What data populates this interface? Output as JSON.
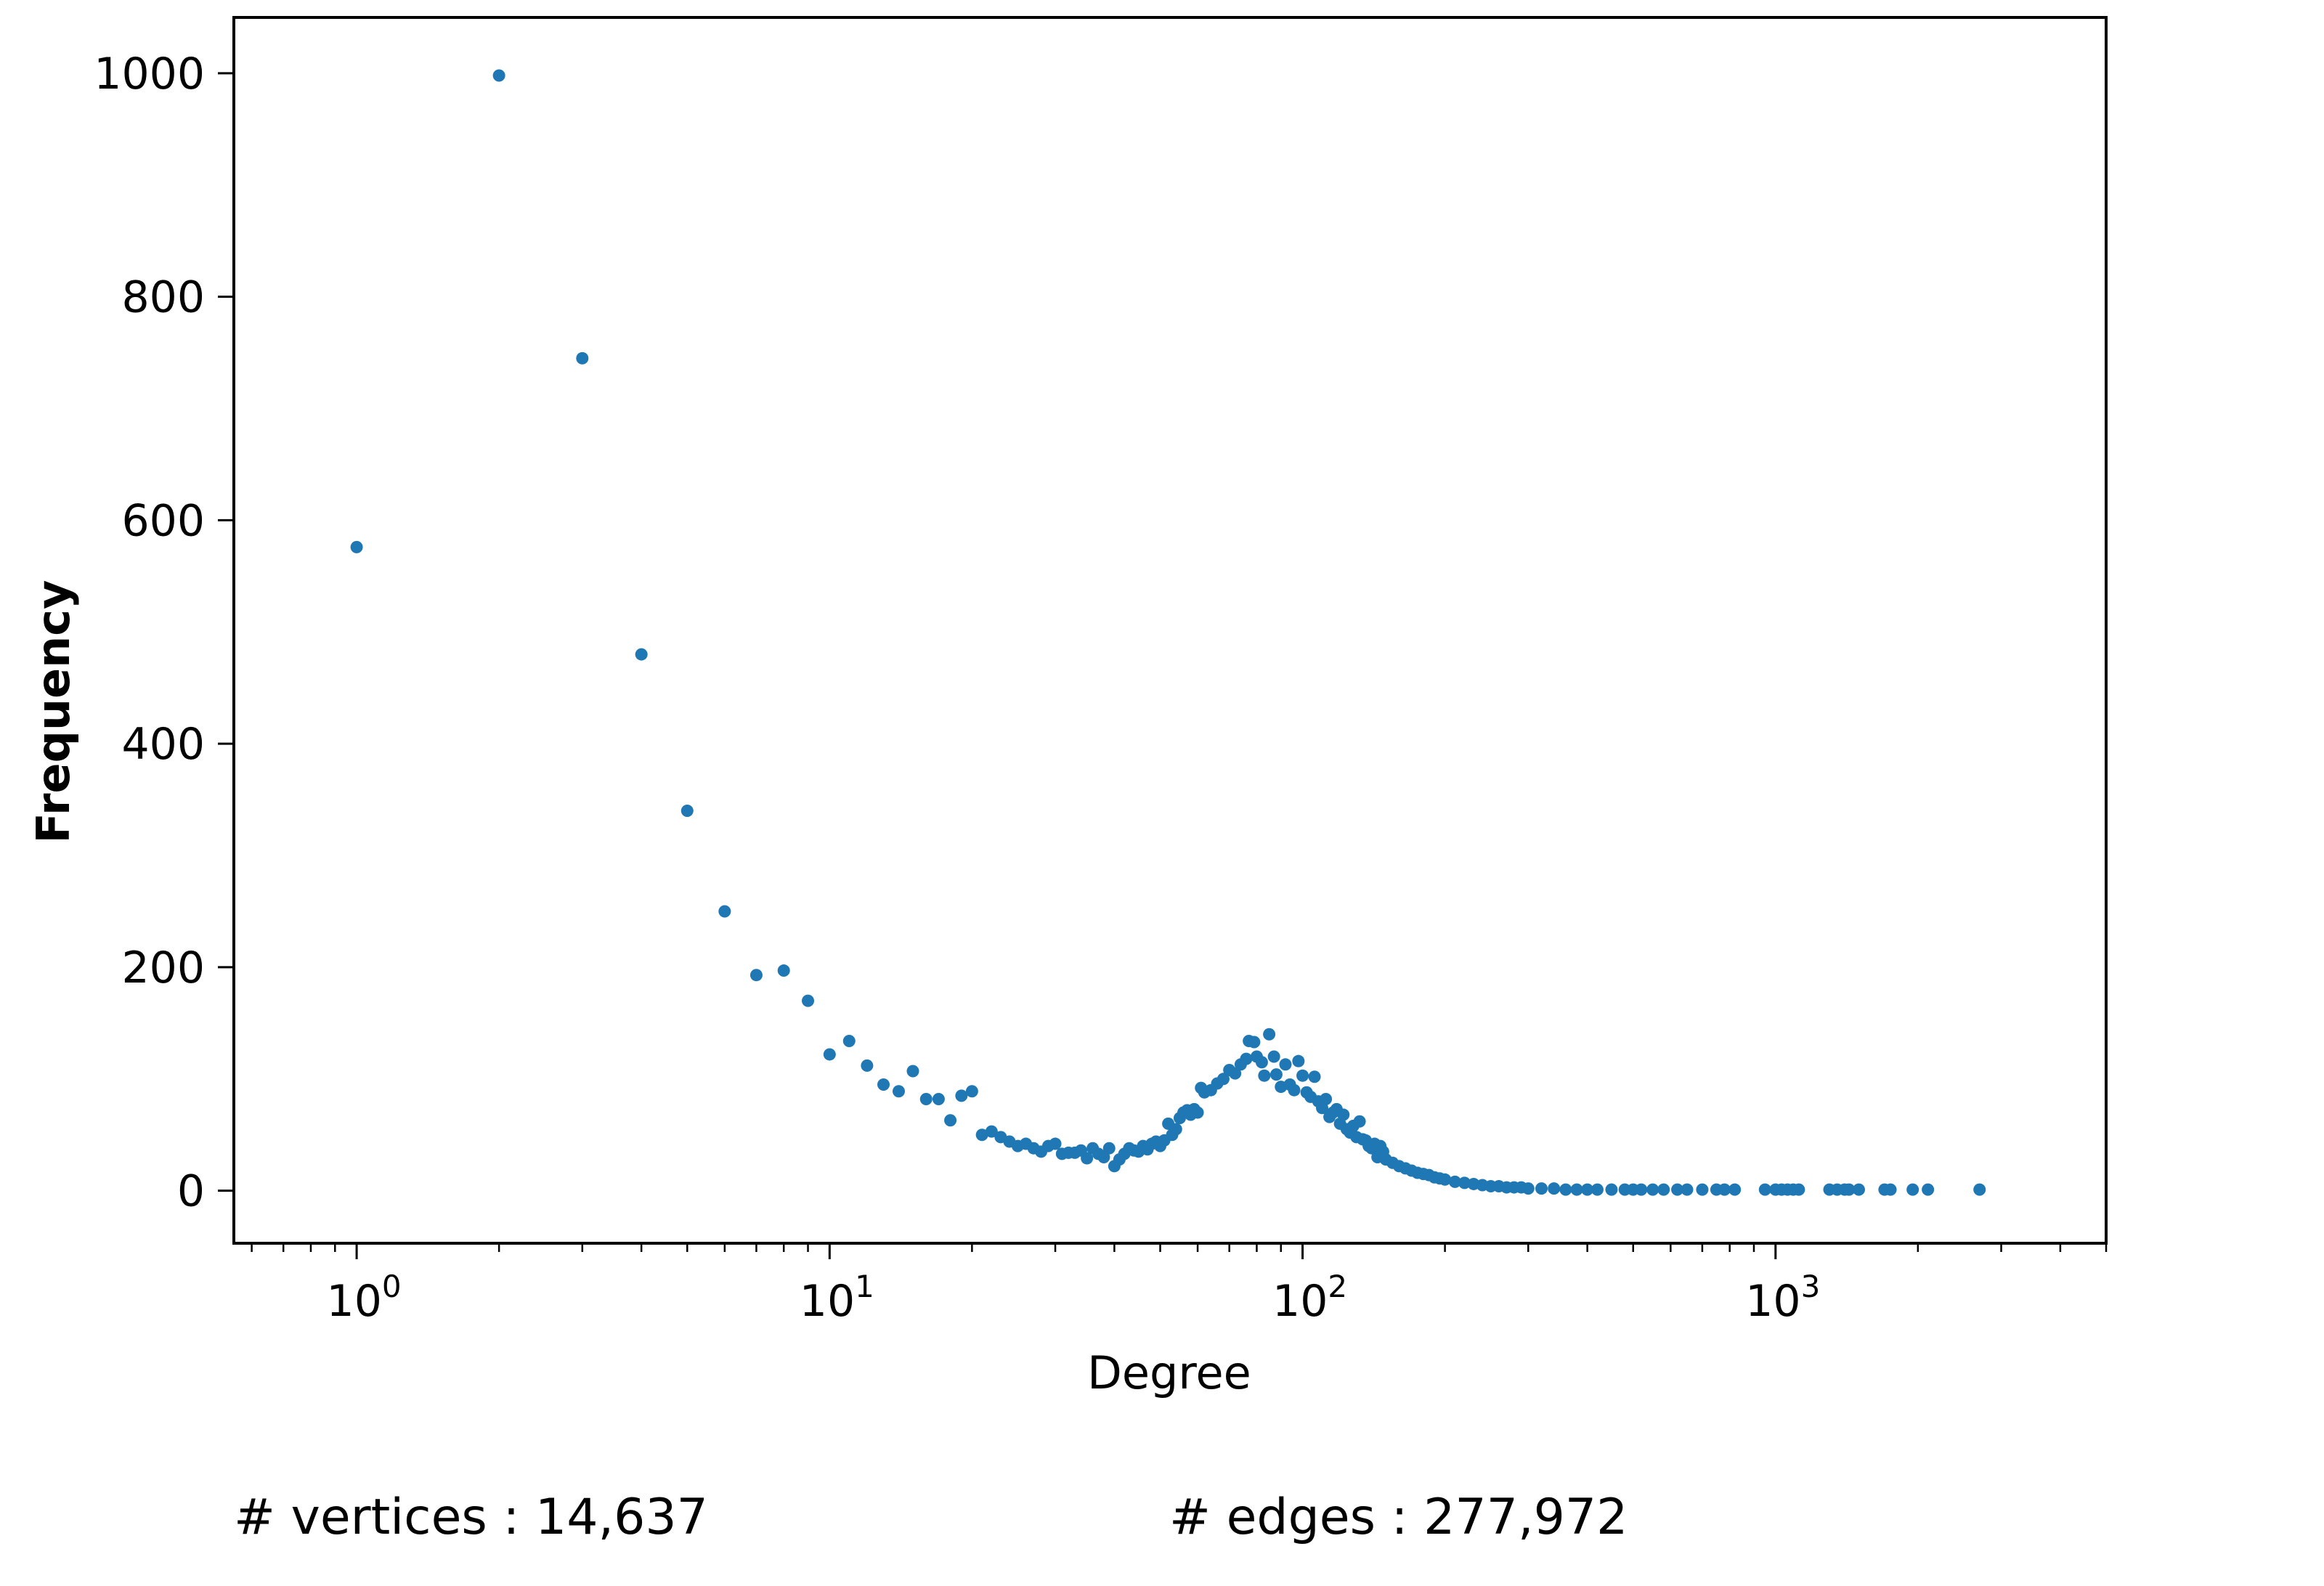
{
  "chart_data": {
    "type": "scatter",
    "title": "",
    "xlabel": "Degree",
    "ylabel": "Frequency",
    "xscale": "log",
    "xlim": [
      0.55,
      5000
    ],
    "ylim": [
      -47,
      1050
    ],
    "x_major_ticks": [
      {
        "value": 1,
        "base": "10",
        "exp": "0"
      },
      {
        "value": 10,
        "base": "10",
        "exp": "1"
      },
      {
        "value": 100,
        "base": "10",
        "exp": "2"
      },
      {
        "value": 1000,
        "base": "10",
        "exp": "3"
      }
    ],
    "y_ticks": [
      {
        "value": 0,
        "label": "0"
      },
      {
        "value": 200,
        "label": "200"
      },
      {
        "value": 400,
        "label": "400"
      },
      {
        "value": 600,
        "label": "600"
      },
      {
        "value": 800,
        "label": "800"
      },
      {
        "value": 1000,
        "label": "1000"
      }
    ],
    "grid": false,
    "marker_color": "#1f77b4",
    "series": [
      {
        "points": [
          [
            1,
            576
          ],
          [
            2,
            998
          ],
          [
            3,
            745
          ],
          [
            4,
            480
          ],
          [
            5,
            340
          ],
          [
            6,
            250
          ],
          [
            7,
            193
          ],
          [
            8,
            197
          ],
          [
            9,
            170
          ],
          [
            10,
            122
          ],
          [
            11,
            134
          ],
          [
            12,
            112
          ],
          [
            13,
            95
          ],
          [
            14,
            89
          ],
          [
            15,
            107
          ],
          [
            16,
            82
          ],
          [
            17,
            82
          ],
          [
            18,
            63
          ],
          [
            19,
            85
          ],
          [
            20,
            89
          ],
          [
            21,
            50
          ],
          [
            22,
            53
          ],
          [
            23,
            48
          ],
          [
            24,
            44
          ],
          [
            25,
            40
          ],
          [
            26,
            42
          ],
          [
            27,
            38
          ],
          [
            28,
            35
          ],
          [
            29,
            40
          ],
          [
            30,
            42
          ],
          [
            31,
            33
          ],
          [
            32,
            34
          ],
          [
            33,
            34
          ],
          [
            34,
            36
          ],
          [
            35,
            29
          ],
          [
            36,
            38
          ],
          [
            37,
            33
          ],
          [
            38,
            30
          ],
          [
            39,
            38
          ],
          [
            40,
            22
          ],
          [
            41,
            28
          ],
          [
            42,
            33
          ],
          [
            43,
            38
          ],
          [
            44,
            36
          ],
          [
            45,
            35
          ],
          [
            46,
            40
          ],
          [
            47,
            37
          ],
          [
            48,
            42
          ],
          [
            49,
            44
          ],
          [
            50,
            40
          ],
          [
            51,
            45
          ],
          [
            52,
            60
          ],
          [
            53,
            50
          ],
          [
            54,
            55
          ],
          [
            55,
            65
          ],
          [
            56,
            70
          ],
          [
            57,
            72
          ],
          [
            58,
            68
          ],
          [
            59,
            73
          ],
          [
            60,
            70
          ],
          [
            61,
            92
          ],
          [
            62,
            88
          ],
          [
            64,
            90
          ],
          [
            66,
            96
          ],
          [
            68,
            100
          ],
          [
            70,
            108
          ],
          [
            72,
            105
          ],
          [
            74,
            113
          ],
          [
            76,
            118
          ],
          [
            77,
            134
          ],
          [
            79,
            133
          ],
          [
            80,
            120
          ],
          [
            82,
            115
          ],
          [
            83,
            103
          ],
          [
            85,
            140
          ],
          [
            87,
            120
          ],
          [
            88,
            104
          ],
          [
            90,
            93
          ],
          [
            92,
            113
          ],
          [
            94,
            95
          ],
          [
            96,
            90
          ],
          [
            98,
            116
          ],
          [
            100,
            103
          ],
          [
            102,
            88
          ],
          [
            104,
            84
          ],
          [
            106,
            102
          ],
          [
            108,
            80
          ],
          [
            110,
            74
          ],
          [
            112,
            82
          ],
          [
            114,
            66
          ],
          [
            116,
            70
          ],
          [
            118,
            73
          ],
          [
            120,
            60
          ],
          [
            122,
            68
          ],
          [
            124,
            55
          ],
          [
            126,
            52
          ],
          [
            128,
            58
          ],
          [
            130,
            48
          ],
          [
            132,
            62
          ],
          [
            134,
            46
          ],
          [
            136,
            45
          ],
          [
            138,
            40
          ],
          [
            140,
            38
          ],
          [
            142,
            42
          ],
          [
            144,
            30
          ],
          [
            146,
            40
          ],
          [
            148,
            35
          ],
          [
            150,
            28
          ],
          [
            155,
            25
          ],
          [
            160,
            22
          ],
          [
            165,
            20
          ],
          [
            170,
            18
          ],
          [
            175,
            16
          ],
          [
            180,
            15
          ],
          [
            185,
            14
          ],
          [
            190,
            12
          ],
          [
            195,
            11
          ],
          [
            200,
            10
          ],
          [
            210,
            8
          ],
          [
            220,
            7
          ],
          [
            230,
            6
          ],
          [
            240,
            5
          ],
          [
            250,
            4
          ],
          [
            260,
            4
          ],
          [
            270,
            3
          ],
          [
            280,
            3
          ],
          [
            290,
            3
          ],
          [
            300,
            2
          ],
          [
            320,
            2
          ],
          [
            340,
            2
          ],
          [
            360,
            1
          ],
          [
            380,
            1
          ],
          [
            400,
            1
          ],
          [
            420,
            1
          ],
          [
            450,
            1
          ],
          [
            480,
            1
          ],
          [
            500,
            1
          ],
          [
            520,
            1
          ],
          [
            550,
            1
          ],
          [
            580,
            1
          ],
          [
            620,
            1
          ],
          [
            650,
            1
          ],
          [
            700,
            1
          ],
          [
            750,
            1
          ],
          [
            780,
            1
          ],
          [
            820,
            1
          ],
          [
            950,
            1
          ],
          [
            1000,
            1
          ],
          [
            1030,
            1
          ],
          [
            1060,
            1
          ],
          [
            1090,
            1
          ],
          [
            1120,
            1
          ],
          [
            1300,
            1
          ],
          [
            1350,
            1
          ],
          [
            1400,
            1
          ],
          [
            1430,
            1
          ],
          [
            1500,
            1
          ],
          [
            1700,
            1
          ],
          [
            1750,
            1
          ],
          [
            1950,
            1
          ],
          [
            2100,
            1
          ],
          [
            2700,
            1
          ]
        ]
      }
    ]
  },
  "footer": {
    "vertices": "# vertices : 14,637",
    "edges": "# edges : 277,972"
  }
}
